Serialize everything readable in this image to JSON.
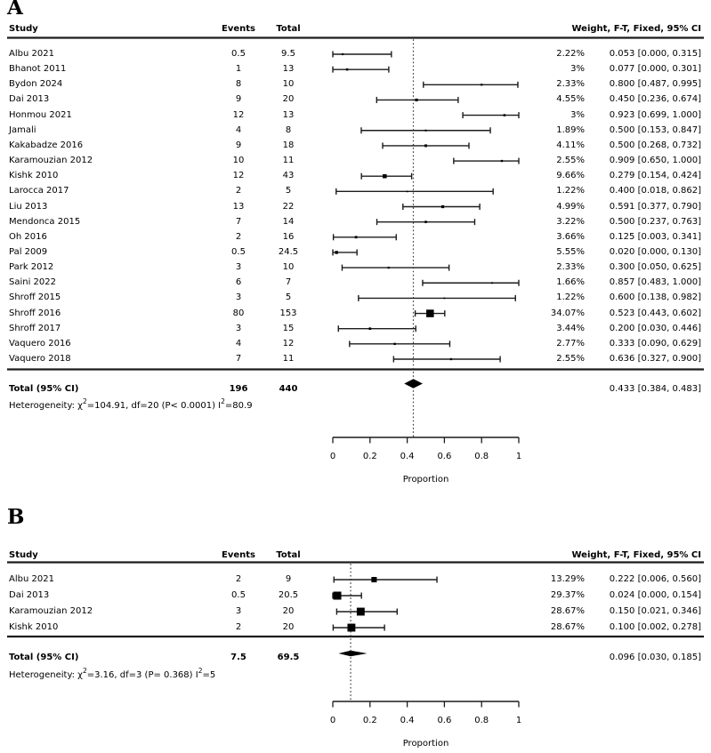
{
  "figure": {
    "description": "Two forest plots (meta-analysis of proportions), panels A and B"
  },
  "colors": {
    "ink": "#000000",
    "line": "#1c1c1c",
    "ref_line": "#3a3a3a",
    "background": "#ffffff"
  },
  "chart_data": [
    {
      "type": "forest",
      "label": "A",
      "columns": {
        "study": "Study",
        "events": "Events",
        "total": "Total",
        "weight_ci": "Weight, F-T, Fixed, 95% CI"
      },
      "axis": {
        "xlim": [
          0,
          1
        ],
        "ticks": [
          0,
          0.2,
          0.4,
          0.6,
          0.8,
          1
        ],
        "tick_labels": [
          "0",
          "0.2",
          "0.4",
          "0.6",
          "0.8",
          "1"
        ],
        "xlabel": "Proportion"
      },
      "ref_line": 0.433,
      "studies": [
        {
          "study": "Albu 2021",
          "events": "0.5",
          "total": "9.5",
          "weight": "2.22%",
          "weight_val": 2.22,
          "est": 0.053,
          "lo": 0.0,
          "hi": 0.315,
          "ci_label": "0.053 [0.000, 0.315]"
        },
        {
          "study": "Bhanot 2011",
          "events": "1",
          "total": "13",
          "weight": "3%",
          "weight_val": 3.0,
          "est": 0.077,
          "lo": 0.0,
          "hi": 0.301,
          "ci_label": "0.077 [0.000, 0.301]"
        },
        {
          "study": "Bydon 2024",
          "events": "8",
          "total": "10",
          "weight": "2.33%",
          "weight_val": 2.33,
          "est": 0.8,
          "lo": 0.487,
          "hi": 0.995,
          "ci_label": "0.800 [0.487, 0.995]"
        },
        {
          "study": "Dai 2013",
          "events": "9",
          "total": "20",
          "weight": "4.55%",
          "weight_val": 4.55,
          "est": 0.45,
          "lo": 0.236,
          "hi": 0.674,
          "ci_label": "0.450 [0.236, 0.674]"
        },
        {
          "study": "Honmou 2021",
          "events": "12",
          "total": "13",
          "weight": "3%",
          "weight_val": 3.0,
          "est": 0.923,
          "lo": 0.699,
          "hi": 1.0,
          "ci_label": "0.923 [0.699, 1.000]"
        },
        {
          "study": "Jamali",
          "events": "4",
          "total": "8",
          "weight": "1.89%",
          "weight_val": 1.89,
          "est": 0.5,
          "lo": 0.153,
          "hi": 0.847,
          "ci_label": "0.500 [0.153, 0.847]"
        },
        {
          "study": "Kakabadze 2016",
          "events": "9",
          "total": "18",
          "weight": "4.11%",
          "weight_val": 4.11,
          "est": 0.5,
          "lo": 0.268,
          "hi": 0.732,
          "ci_label": "0.500 [0.268, 0.732]"
        },
        {
          "study": "Karamouzian 2012",
          "events": "10",
          "total": "11",
          "weight": "2.55%",
          "weight_val": 2.55,
          "est": 0.909,
          "lo": 0.65,
          "hi": 1.0,
          "ci_label": "0.909 [0.650, 1.000]"
        },
        {
          "study": "Kishk 2010",
          "events": "12",
          "total": "43",
          "weight": "9.66%",
          "weight_val": 9.66,
          "est": 0.279,
          "lo": 0.154,
          "hi": 0.424,
          "ci_label": "0.279 [0.154, 0.424]"
        },
        {
          "study": "Larocca 2017",
          "events": "2",
          "total": "5",
          "weight": "1.22%",
          "weight_val": 1.22,
          "est": 0.4,
          "lo": 0.018,
          "hi": 0.862,
          "ci_label": "0.400 [0.018, 0.862]"
        },
        {
          "study": "Liu 2013",
          "events": "13",
          "total": "22",
          "weight": "4.99%",
          "weight_val": 4.99,
          "est": 0.591,
          "lo": 0.377,
          "hi": 0.79,
          "ci_label": "0.591 [0.377, 0.790]"
        },
        {
          "study": "Mendonca 2015",
          "events": "7",
          "total": "14",
          "weight": "3.22%",
          "weight_val": 3.22,
          "est": 0.5,
          "lo": 0.237,
          "hi": 0.763,
          "ci_label": "0.500 [0.237, 0.763]"
        },
        {
          "study": "Oh 2016",
          "events": "2",
          "total": "16",
          "weight": "3.66%",
          "weight_val": 3.66,
          "est": 0.125,
          "lo": 0.003,
          "hi": 0.341,
          "ci_label": "0.125 [0.003, 0.341]"
        },
        {
          "study": "Pal 2009",
          "events": "0.5",
          "total": "24.5",
          "weight": "5.55%",
          "weight_val": 5.55,
          "est": 0.02,
          "lo": 0.0,
          "hi": 0.13,
          "ci_label": "0.020 [0.000, 0.130]"
        },
        {
          "study": "Park 2012",
          "events": "3",
          "total": "10",
          "weight": "2.33%",
          "weight_val": 2.33,
          "est": 0.3,
          "lo": 0.05,
          "hi": 0.625,
          "ci_label": "0.300 [0.050, 0.625]"
        },
        {
          "study": "Saini 2022",
          "events": "6",
          "total": "7",
          "weight": "1.66%",
          "weight_val": 1.66,
          "est": 0.857,
          "lo": 0.483,
          "hi": 1.0,
          "ci_label": "0.857 [0.483, 1.000]"
        },
        {
          "study": "Shroff 2015",
          "events": "3",
          "total": "5",
          "weight": "1.22%",
          "weight_val": 1.22,
          "est": 0.6,
          "lo": 0.138,
          "hi": 0.982,
          "ci_label": "0.600 [0.138, 0.982]"
        },
        {
          "study": "Shroff 2016",
          "events": "80",
          "total": "153",
          "weight": "34.07%",
          "weight_val": 34.07,
          "est": 0.523,
          "lo": 0.443,
          "hi": 0.602,
          "ci_label": "0.523 [0.443, 0.602]"
        },
        {
          "study": "Shroff 2017",
          "events": "3",
          "total": "15",
          "weight": "3.44%",
          "weight_val": 3.44,
          "est": 0.2,
          "lo": 0.03,
          "hi": 0.446,
          "ci_label": "0.200 [0.030, 0.446]"
        },
        {
          "study": "Vaquero 2016",
          "events": "4",
          "total": "12",
          "weight": "2.77%",
          "weight_val": 2.77,
          "est": 0.333,
          "lo": 0.09,
          "hi": 0.629,
          "ci_label": "0.333 [0.090, 0.629]"
        },
        {
          "study": "Vaquero 2018",
          "events": "7",
          "total": "11",
          "weight": "2.55%",
          "weight_val": 2.55,
          "est": 0.636,
          "lo": 0.327,
          "hi": 0.9,
          "ci_label": "0.636 [0.327, 0.900]"
        }
      ],
      "total": {
        "label": "Total (95% CI)",
        "events": "196",
        "total": "440",
        "est": 0.433,
        "lo": 0.384,
        "hi": 0.483,
        "ci_label": "0.433 [0.384, 0.483]"
      },
      "heterogeneity": [
        {
          "t": "Heterogeneity: χ",
          "sup": false
        },
        {
          "t": "2",
          "sup": true
        },
        {
          "t": "=104.91, df=20 (P< 0.0001) I",
          "sup": false
        },
        {
          "t": "2",
          "sup": true
        },
        {
          "t": "=80.9",
          "sup": false
        }
      ]
    },
    {
      "type": "forest",
      "label": "B",
      "columns": {
        "study": "Study",
        "events": "Events",
        "total": "Total",
        "weight_ci": "Weight, F-T, Fixed, 95% CI"
      },
      "axis": {
        "xlim": [
          0,
          1
        ],
        "ticks": [
          0,
          0.2,
          0.4,
          0.6,
          0.8,
          1
        ],
        "tick_labels": [
          "0",
          "0.2",
          "0.4",
          "0.6",
          "0.8",
          "1"
        ],
        "xlabel": "Proportion"
      },
      "ref_line": 0.096,
      "studies": [
        {
          "study": "Albu 2021",
          "events": "2",
          "total": "9",
          "weight": "13.29%",
          "weight_val": 13.29,
          "est": 0.222,
          "lo": 0.006,
          "hi": 0.56,
          "ci_label": "0.222 [0.006, 0.560]"
        },
        {
          "study": "Dai 2013",
          "events": "0.5",
          "total": "20.5",
          "weight": "29.37%",
          "weight_val": 29.37,
          "est": 0.024,
          "lo": 0.0,
          "hi": 0.154,
          "ci_label": "0.024 [0.000, 0.154]"
        },
        {
          "study": "Karamouzian 2012",
          "events": "3",
          "total": "20",
          "weight": "28.67%",
          "weight_val": 28.67,
          "est": 0.15,
          "lo": 0.021,
          "hi": 0.346,
          "ci_label": "0.150 [0.021, 0.346]"
        },
        {
          "study": "Kishk 2010",
          "events": "2",
          "total": "20",
          "weight": "28.67%",
          "weight_val": 28.67,
          "est": 0.1,
          "lo": 0.002,
          "hi": 0.278,
          "ci_label": "0.100 [0.002, 0.278]"
        }
      ],
      "total": {
        "label": "Total (95% CI)",
        "events": "7.5",
        "total": "69.5",
        "est": 0.096,
        "lo": 0.03,
        "hi": 0.185,
        "ci_label": "0.096 [0.030, 0.185]"
      },
      "heterogeneity": [
        {
          "t": "Heterogeneity: χ",
          "sup": false
        },
        {
          "t": "2",
          "sup": true
        },
        {
          "t": "=3.16, df=3 (P= 0.368) I",
          "sup": false
        },
        {
          "t": "2",
          "sup": true
        },
        {
          "t": "=5",
          "sup": false
        }
      ]
    }
  ]
}
